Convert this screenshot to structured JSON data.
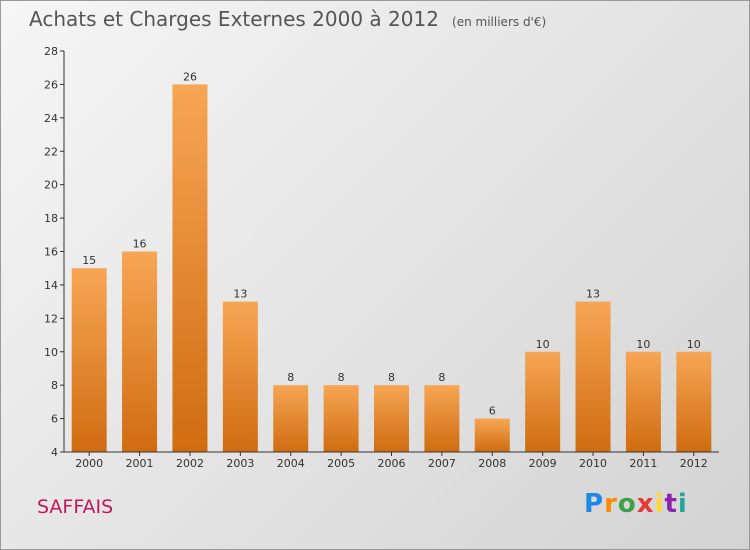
{
  "header": {
    "title": "Achats et Charges Externes 2000 à 2012",
    "unit": "(en milliers d'€)"
  },
  "footer": {
    "commune": "SAFFAIS",
    "brand": {
      "letters": [
        "P",
        "r",
        "o",
        "x",
        "i",
        "t",
        "i"
      ],
      "colors": [
        "#1e88e5",
        "#fb8c00",
        "#43a047",
        "#e53935",
        "#fdd835",
        "#8e24aa",
        "#26a69a"
      ]
    }
  },
  "chart_data": {
    "type": "bar",
    "title": "Achats et Charges Externes 2000 à 2012",
    "xlabel": "",
    "ylabel": "",
    "categories": [
      "2000",
      "2001",
      "2002",
      "2003",
      "2004",
      "2005",
      "2006",
      "2007",
      "2008",
      "2009",
      "2010",
      "2011",
      "2012"
    ],
    "values": [
      15,
      16,
      26,
      13,
      8,
      8,
      8,
      8,
      6,
      10,
      13,
      10,
      10
    ],
    "ylim": [
      4,
      28
    ],
    "yticks": [
      4,
      6,
      8,
      10,
      12,
      14,
      16,
      18,
      20,
      22,
      24,
      26,
      28
    ],
    "grid": false,
    "colors": {
      "bar_top": "#f7a655",
      "bar_bottom": "#d06c10",
      "axis": "#333333"
    }
  }
}
